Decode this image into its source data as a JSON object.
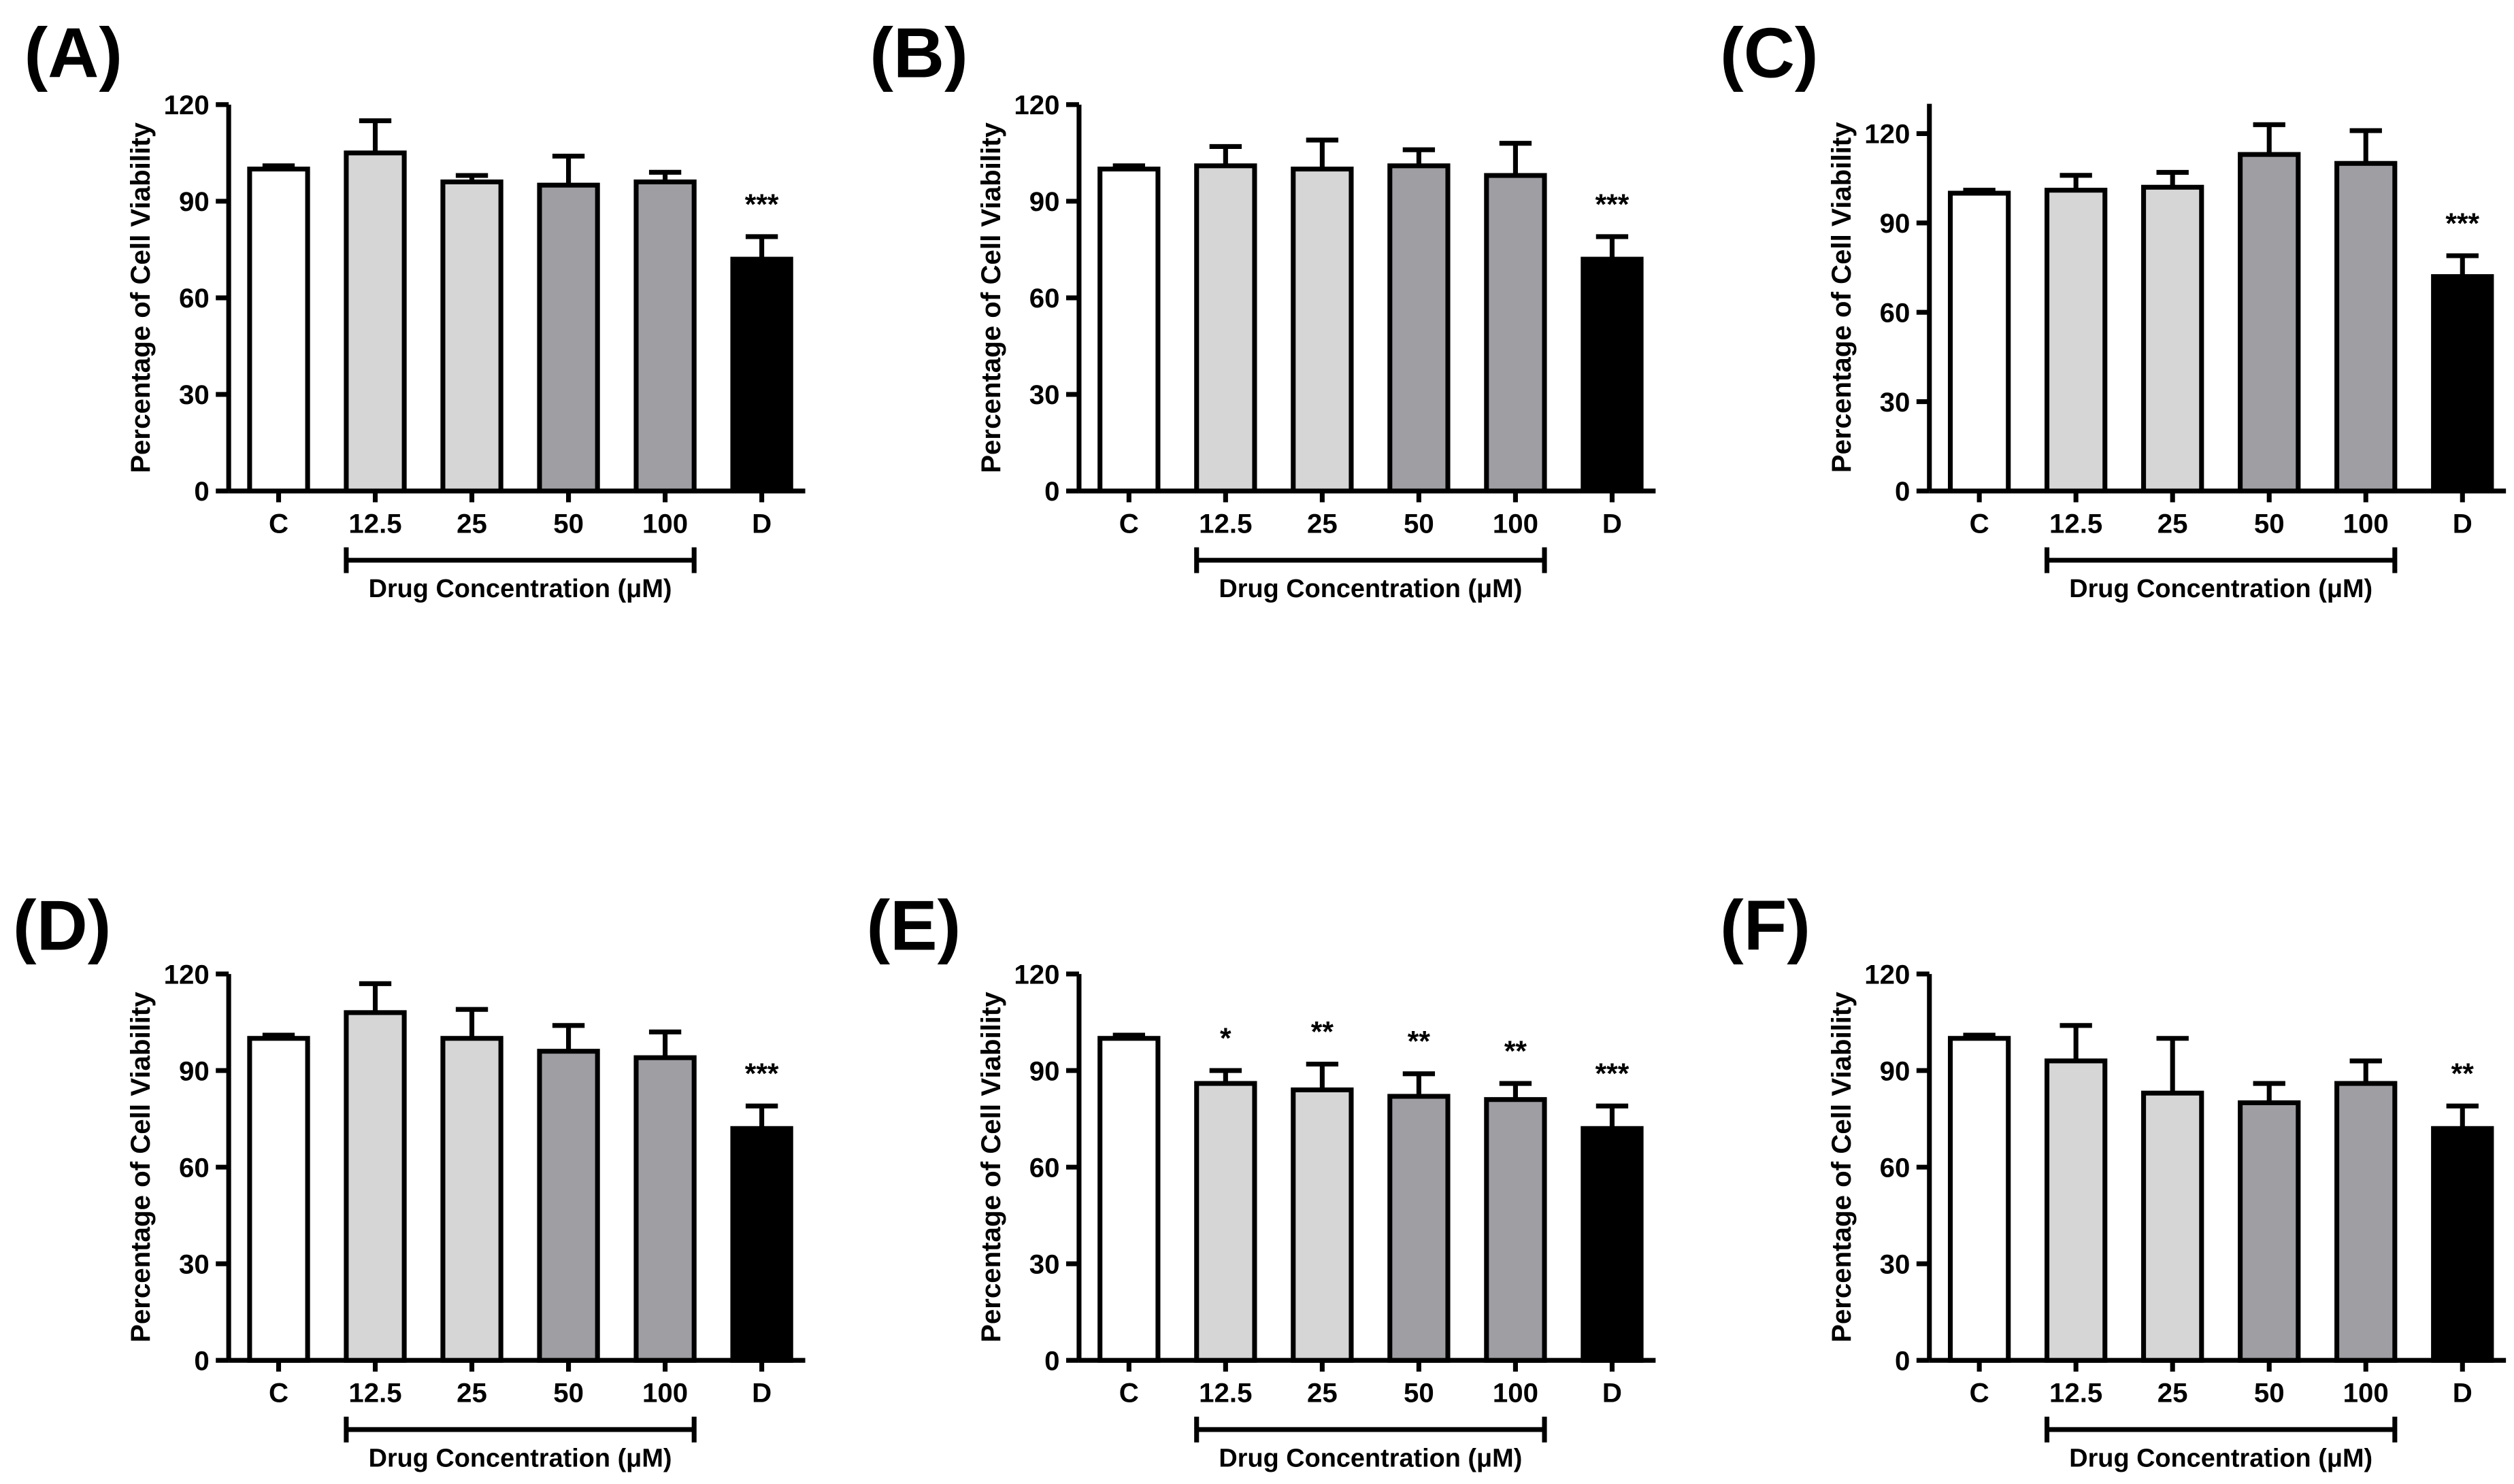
{
  "chart_data": [
    {
      "panel": "(A)",
      "type": "bar",
      "categories": [
        "C",
        "12.5",
        "25",
        "50",
        "100",
        "D"
      ],
      "values": [
        100,
        105,
        96,
        95,
        96,
        72
      ],
      "errors": [
        1,
        10,
        2,
        9,
        3,
        7
      ],
      "significance": [
        "",
        "",
        "",
        "",
        "",
        "***"
      ],
      "ylabel": "Percentage of Cell Viability",
      "bracket_label": "Drug Concentration (μM)",
      "ylim": [
        0,
        120
      ],
      "yticks": [
        0,
        30,
        60,
        90,
        120
      ]
    },
    {
      "panel": "(B)",
      "type": "bar",
      "categories": [
        "C",
        "12.5",
        "25",
        "50",
        "100",
        "D"
      ],
      "values": [
        100,
        101,
        100,
        101,
        98,
        72
      ],
      "errors": [
        1,
        6,
        9,
        5,
        10,
        7
      ],
      "significance": [
        "",
        "",
        "",
        "",
        "",
        "***"
      ],
      "ylabel": "Percentage of Cell Viability",
      "bracket_label": "Drug Concentration (μM)",
      "ylim": [
        0,
        120
      ],
      "yticks": [
        0,
        30,
        60,
        90,
        120
      ]
    },
    {
      "panel": "(C)",
      "type": "bar",
      "categories": [
        "C",
        "12.5",
        "25",
        "50",
        "100",
        "D"
      ],
      "values": [
        100,
        101,
        102,
        113,
        110,
        72
      ],
      "errors": [
        1,
        5,
        5,
        10,
        11,
        7
      ],
      "significance": [
        "",
        "",
        "",
        "",
        "",
        "***"
      ],
      "ylabel": "Percentage of Cell Viability",
      "bracket_label": "Drug Concentration (μM)",
      "ylim": [
        0,
        130
      ],
      "yticks": [
        0,
        30,
        60,
        90,
        120
      ]
    },
    {
      "panel": "(D)",
      "type": "bar",
      "categories": [
        "C",
        "12.5",
        "25",
        "50",
        "100",
        "D"
      ],
      "values": [
        100,
        108,
        100,
        96,
        94,
        72
      ],
      "errors": [
        1,
        9,
        9,
        8,
        8,
        7
      ],
      "significance": [
        "",
        "",
        "",
        "",
        "",
        "***"
      ],
      "ylabel": "Percentage of Cell Viability",
      "bracket_label": "Drug Concentration (μM)",
      "ylim": [
        0,
        120
      ],
      "yticks": [
        0,
        30,
        60,
        90,
        120
      ]
    },
    {
      "panel": "(E)",
      "type": "bar",
      "categories": [
        "C",
        "12.5",
        "25",
        "50",
        "100",
        "D"
      ],
      "values": [
        100,
        86,
        84,
        82,
        81,
        72
      ],
      "errors": [
        1,
        4,
        8,
        7,
        5,
        7
      ],
      "significance": [
        "",
        "*",
        "**",
        "**",
        "**",
        "***"
      ],
      "ylabel": "Percentage of Cell Viability",
      "bracket_label": "Drug Concentration (μM)",
      "ylim": [
        0,
        120
      ],
      "yticks": [
        0,
        30,
        60,
        90,
        120
      ]
    },
    {
      "panel": "(F)",
      "type": "bar",
      "categories": [
        "C",
        "12.5",
        "25",
        "50",
        "100",
        "D"
      ],
      "values": [
        100,
        93,
        83,
        80,
        86,
        72
      ],
      "errors": [
        1,
        11,
        17,
        6,
        7,
        7
      ],
      "significance": [
        "",
        "",
        "",
        "",
        "",
        "**"
      ],
      "ylabel": "Percentage of Cell Viability",
      "bracket_label": "Drug Concentration (μM)",
      "ylim": [
        0,
        120
      ],
      "yticks": [
        0,
        30,
        60,
        90,
        120
      ]
    }
  ],
  "colors": {
    "control": "#ffffff",
    "low_dose": "#d6d6d6",
    "high_dose": "#9e9ea3",
    "drug_d": "#000000",
    "stroke": "#000000"
  }
}
